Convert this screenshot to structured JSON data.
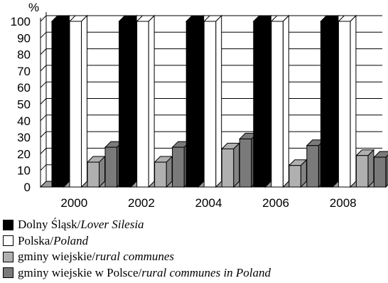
{
  "chart_data": {
    "type": "bar",
    "y_unit": "%",
    "categories": [
      "2000",
      "2002",
      "2004",
      "2006",
      "2008"
    ],
    "y_ticks": [
      "0",
      "10",
      "20",
      "30",
      "40",
      "50",
      "60",
      "70",
      "80",
      "90",
      "100"
    ],
    "ylim": [
      0,
      100
    ],
    "grid": true,
    "legend_position": "bottom",
    "series": [
      {
        "name": "Dolny Śląsk",
        "name_en": "Lover Silesia",
        "color": "#000000",
        "values": [
          100,
          100,
          100,
          100,
          100
        ]
      },
      {
        "name": "Polska",
        "name_en": "Poland",
        "color": "#ffffff",
        "values": [
          100,
          100,
          100,
          100,
          100
        ]
      },
      {
        "name": "gminy wiejskie",
        "name_en": "rural communes",
        "color": "#b0b0b0",
        "values": [
          15,
          15,
          23,
          13,
          19
        ]
      },
      {
        "name": "gminy wiejskie w Polsce",
        "name_en": "rural communes in Poland",
        "color": "#7a7a7a",
        "values": [
          24,
          24,
          29,
          25,
          18
        ]
      }
    ]
  }
}
